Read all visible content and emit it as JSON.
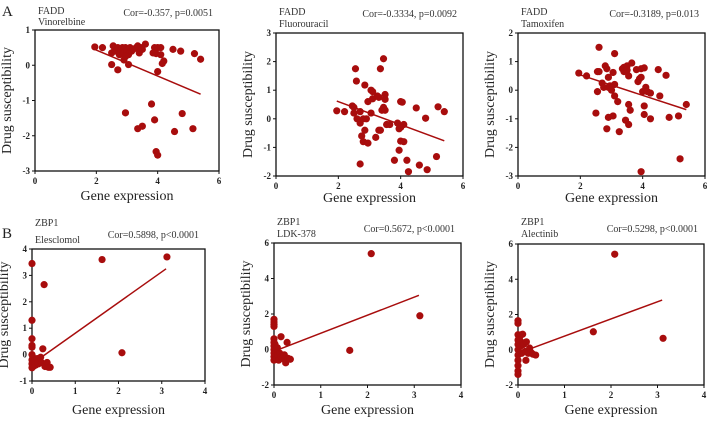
{
  "panel_labels": [
    "A",
    "B"
  ],
  "point_color": "#a80d0d",
  "chart_data": [
    {
      "type": "scatter",
      "gene": "FADD",
      "drug": "Vinorelbine",
      "stat": "Cor=-0.357, p=0.0051",
      "xlabel": "Gene expression",
      "ylabel": "Drug susceptibility",
      "xlim": [
        0,
        6
      ],
      "ylim": [
        -3,
        1
      ],
      "xstep": 2,
      "ystep": 1,
      "fit": [
        [
          1.95,
          0.45
        ],
        [
          5.4,
          -0.82
        ]
      ],
      "points": [
        [
          1.95,
          0.52
        ],
        [
          2.2,
          0.5
        ],
        [
          2.5,
          0.35
        ],
        [
          2.55,
          0.55
        ],
        [
          2.6,
          0.45
        ],
        [
          2.65,
          0.4
        ],
        [
          2.7,
          0.5
        ],
        [
          2.75,
          0.3
        ],
        [
          2.8,
          0.45
        ],
        [
          2.85,
          0.5
        ],
        [
          2.9,
          0.35
        ],
        [
          2.95,
          0.5
        ],
        [
          3.0,
          0.4
        ],
        [
          3.05,
          0.3
        ],
        [
          3.1,
          0.5
        ],
        [
          3.15,
          0.4
        ],
        [
          3.2,
          0.45
        ],
        [
          3.3,
          0.5
        ],
        [
          3.35,
          0.55
        ],
        [
          3.4,
          0.35
        ],
        [
          3.45,
          0.5
        ],
        [
          3.5,
          0.45
        ],
        [
          3.6,
          0.6
        ],
        [
          2.9,
          0.15
        ],
        [
          2.95,
          0.25
        ],
        [
          2.5,
          0.02
        ],
        [
          2.7,
          -0.13
        ],
        [
          3.05,
          0.02
        ],
        [
          3.9,
          0.5
        ],
        [
          4.0,
          0.5
        ],
        [
          4.1,
          0.5
        ],
        [
          3.85,
          0.35
        ],
        [
          3.95,
          0.33
        ],
        [
          4.1,
          0.3
        ],
        [
          4.2,
          0.12
        ],
        [
          4.15,
          0.05
        ],
        [
          4.5,
          0.45
        ],
        [
          4.75,
          0.4
        ],
        [
          5.2,
          0.33
        ],
        [
          5.4,
          0.17
        ],
        [
          4.0,
          -0.18
        ],
        [
          3.8,
          -1.1
        ],
        [
          2.95,
          -1.35
        ],
        [
          3.9,
          -1.55
        ],
        [
          3.35,
          -1.8
        ],
        [
          3.5,
          -1.73
        ],
        [
          4.8,
          -1.37
        ],
        [
          4.55,
          -1.88
        ],
        [
          5.15,
          -1.8
        ],
        [
          3.95,
          -2.45
        ],
        [
          4.0,
          -2.55
        ]
      ]
    },
    {
      "type": "scatter",
      "gene": "FADD",
      "drug": "Fluorouracil",
      "stat": "Cor=-0.3334, p=0.0092",
      "xlabel": "Gene expression",
      "ylabel": "Drug susceptibility",
      "xlim": [
        0,
        6
      ],
      "ylim": [
        -2,
        3
      ],
      "xstep": 2,
      "ystep": 1,
      "fit": [
        [
          1.95,
          0.62
        ],
        [
          5.4,
          -0.77
        ]
      ],
      "points": [
        [
          1.95,
          0.28
        ],
        [
          2.2,
          0.25
        ],
        [
          2.45,
          0.45
        ],
        [
          2.5,
          0.4
        ],
        [
          2.55,
          1.75
        ],
        [
          2.58,
          1.32
        ],
        [
          2.5,
          0.2
        ],
        [
          2.6,
          0.0
        ],
        [
          2.7,
          0.25
        ],
        [
          2.7,
          -0.15
        ],
        [
          2.75,
          -0.6
        ],
        [
          2.8,
          -0.8
        ],
        [
          2.8,
          0.0
        ],
        [
          2.85,
          1.18
        ],
        [
          2.85,
          -0.4
        ],
        [
          2.9,
          0.0
        ],
        [
          2.95,
          -0.85
        ],
        [
          2.95,
          0.6
        ],
        [
          3.05,
          1.0
        ],
        [
          3.05,
          0.2
        ],
        [
          3.1,
          0.7
        ],
        [
          3.1,
          0.95
        ],
        [
          3.2,
          -0.65
        ],
        [
          3.25,
          0.8
        ],
        [
          3.3,
          -0.4
        ],
        [
          3.3,
          0.75
        ],
        [
          3.35,
          1.75
        ],
        [
          3.35,
          -0.4
        ],
        [
          3.4,
          0.3
        ],
        [
          3.45,
          2.1
        ],
        [
          3.45,
          0.4
        ],
        [
          3.5,
          0.85
        ],
        [
          3.5,
          0.68
        ],
        [
          3.5,
          0.3
        ],
        [
          3.55,
          -0.2
        ],
        [
          3.65,
          -0.2
        ],
        [
          2.7,
          -1.58
        ],
        [
          3.8,
          -1.45
        ],
        [
          3.9,
          -0.15
        ],
        [
          3.95,
          -1.1
        ],
        [
          3.95,
          -0.35
        ],
        [
          4.0,
          -0.78
        ],
        [
          4.0,
          0.6
        ],
        [
          4.05,
          0.58
        ],
        [
          4.1,
          -0.8
        ],
        [
          4.1,
          -0.2
        ],
        [
          4.0,
          -0.3
        ],
        [
          4.2,
          -1.45
        ],
        [
          4.25,
          -1.85
        ],
        [
          4.5,
          0.38
        ],
        [
          4.6,
          -1.62
        ],
        [
          4.8,
          0.02
        ],
        [
          4.85,
          -1.78
        ],
        [
          5.15,
          -1.32
        ],
        [
          5.2,
          0.42
        ],
        [
          5.4,
          0.25
        ]
      ]
    },
    {
      "type": "scatter",
      "gene": "FADD",
      "drug": "Tamoxifen",
      "stat": "Cor=-0.3189, p=0.013",
      "xlabel": "Gene expression",
      "ylabel": "Drug susceptibility",
      "xlim": [
        0,
        6
      ],
      "ylim": [
        -3,
        2
      ],
      "xstep": 2,
      "ystep": 1,
      "fit": [
        [
          1.95,
          0.55
        ],
        [
          5.4,
          -0.68
        ]
      ],
      "points": [
        [
          1.95,
          0.6
        ],
        [
          2.2,
          0.5
        ],
        [
          2.5,
          -0.8
        ],
        [
          2.55,
          -0.05
        ],
        [
          2.55,
          0.65
        ],
        [
          2.6,
          1.5
        ],
        [
          2.6,
          0.65
        ],
        [
          2.7,
          0.25
        ],
        [
          2.75,
          0.1
        ],
        [
          2.8,
          0.85
        ],
        [
          2.85,
          0.75
        ],
        [
          2.9,
          0.45
        ],
        [
          2.9,
          0.1
        ],
        [
          2.85,
          -1.35
        ],
        [
          2.9,
          -0.95
        ],
        [
          2.95,
          0.15
        ],
        [
          3.0,
          0.0
        ],
        [
          3.05,
          0.62
        ],
        [
          3.05,
          -0.9
        ],
        [
          3.1,
          1.28
        ],
        [
          3.1,
          0.2
        ],
        [
          3.1,
          -0.2
        ],
        [
          3.2,
          -0.4
        ],
        [
          3.25,
          -1.45
        ],
        [
          3.35,
          0.75
        ],
        [
          3.4,
          0.65
        ],
        [
          3.4,
          0.8
        ],
        [
          3.45,
          -1.05
        ],
        [
          3.5,
          0.85
        ],
        [
          3.5,
          0.7
        ],
        [
          3.55,
          0.5
        ],
        [
          3.55,
          -0.5
        ],
        [
          3.55,
          -1.2
        ],
        [
          3.6,
          -0.7
        ],
        [
          3.65,
          0.95
        ],
        [
          3.8,
          0.72
        ],
        [
          3.85,
          0.3
        ],
        [
          3.9,
          0.4
        ],
        [
          3.95,
          0.45
        ],
        [
          3.95,
          0.75
        ],
        [
          3.95,
          -2.85
        ],
        [
          4.0,
          -0.05
        ],
        [
          4.05,
          0.78
        ],
        [
          4.05,
          -0.55
        ],
        [
          4.05,
          -0.85
        ],
        [
          4.1,
          0.1
        ],
        [
          4.15,
          -0.05
        ],
        [
          4.25,
          -0.1
        ],
        [
          4.25,
          -1.0
        ],
        [
          4.5,
          0.72
        ],
        [
          4.55,
          -0.2
        ],
        [
          4.75,
          0.52
        ],
        [
          4.85,
          -0.95
        ],
        [
          5.15,
          -0.9
        ],
        [
          5.2,
          -2.4
        ],
        [
          5.4,
          -0.5
        ]
      ]
    },
    {
      "type": "scatter",
      "gene": "ZBP1",
      "drug": "Elesclomol",
      "stat": "Cor=0.5898, p<0.0001",
      "xlabel": "Gene expression",
      "ylabel": "Drug susceptibility",
      "xlim": [
        0,
        4
      ],
      "ylim": [
        -1,
        4
      ],
      "xstep": 1,
      "ystep": 1,
      "fit": [
        [
          0,
          -0.35
        ],
        [
          3.1,
          3.25
        ]
      ],
      "points": [
        [
          0,
          3.45
        ],
        [
          0,
          1.3
        ],
        [
          0,
          0.6
        ],
        [
          0,
          0.35
        ],
        [
          0,
          0.28
        ],
        [
          0,
          0.0
        ],
        [
          0,
          -0.2
        ],
        [
          0,
          -0.35
        ],
        [
          0,
          -0.5
        ],
        [
          0.02,
          -0.1
        ],
        [
          0.03,
          -0.45
        ],
        [
          0.05,
          -0.3
        ],
        [
          0.06,
          -0.2
        ],
        [
          0.08,
          -0.4
        ],
        [
          0.1,
          -0.25
        ],
        [
          0.12,
          -0.15
        ],
        [
          0.15,
          -0.35
        ],
        [
          0.18,
          -0.2
        ],
        [
          0.2,
          -0.1
        ],
        [
          0.22,
          -0.3
        ],
        [
          0.25,
          0.22
        ],
        [
          0.28,
          2.65
        ],
        [
          0.3,
          -0.45
        ],
        [
          0.35,
          -0.3
        ],
        [
          0.38,
          -0.48
        ],
        [
          0.42,
          -0.48
        ],
        [
          1.62,
          3.6
        ],
        [
          2.08,
          0.07
        ],
        [
          3.12,
          3.7
        ]
      ]
    },
    {
      "type": "scatter",
      "gene": "ZBP1",
      "drug": "LDK-378",
      "stat": "Cor=0.5672, p<0.0001",
      "xlabel": "Gene expression",
      "ylabel": "Drug susceptibility",
      "xlim": [
        0,
        4
      ],
      "ylim": [
        -2,
        6
      ],
      "xstep": 1,
      "ystep": 2,
      "fit": [
        [
          0,
          -0.1
        ],
        [
          3.1,
          3.05
        ]
      ],
      "points": [
        [
          0,
          1.7
        ],
        [
          0,
          1.55
        ],
        [
          0,
          1.4
        ],
        [
          0,
          1.3
        ],
        [
          0,
          0.6
        ],
        [
          0,
          0.4
        ],
        [
          0,
          0.2
        ],
        [
          0,
          0.0
        ],
        [
          0,
          -0.2
        ],
        [
          0,
          -0.4
        ],
        [
          0,
          -0.6
        ],
        [
          0.02,
          0.3
        ],
        [
          0.04,
          -0.1
        ],
        [
          0.05,
          -0.5
        ],
        [
          0.07,
          0.1
        ],
        [
          0.08,
          -0.3
        ],
        [
          0.1,
          -0.6
        ],
        [
          0.12,
          -0.2
        ],
        [
          0.15,
          0.72
        ],
        [
          0.15,
          -0.4
        ],
        [
          0.18,
          -0.5
        ],
        [
          0.22,
          -0.3
        ],
        [
          0.25,
          -0.75
        ],
        [
          0.28,
          0.4
        ],
        [
          0.3,
          -0.5
        ],
        [
          0.35,
          -0.55
        ],
        [
          1.62,
          -0.05
        ],
        [
          2.08,
          5.4
        ],
        [
          3.12,
          1.9
        ]
      ]
    },
    {
      "type": "scatter",
      "gene": "ZBP1",
      "drug": "Alectinib",
      "stat": "Cor=0.5298, p<0.0001",
      "xlabel": "Gene expression",
      "ylabel": "Drug susceptibility",
      "xlim": [
        0,
        4
      ],
      "ylim": [
        -2,
        6
      ],
      "xstep": 1,
      "ystep": 2,
      "fit": [
        [
          0,
          -0.2
        ],
        [
          3.1,
          2.82
        ]
      ],
      "points": [
        [
          0,
          1.65
        ],
        [
          0,
          1.5
        ],
        [
          0,
          0.85
        ],
        [
          0,
          0.55
        ],
        [
          0,
          0.3
        ],
        [
          0,
          0.0
        ],
        [
          0,
          -0.3
        ],
        [
          0,
          -0.6
        ],
        [
          0,
          -0.9
        ],
        [
          0,
          -1.2
        ],
        [
          0,
          -1.4
        ],
        [
          0.03,
          0.6
        ],
        [
          0.05,
          0.2
        ],
        [
          0.07,
          0.85
        ],
        [
          0.08,
          -0.2
        ],
        [
          0.1,
          0.88
        ],
        [
          0.1,
          0.4
        ],
        [
          0.12,
          0.3
        ],
        [
          0.15,
          -0.1
        ],
        [
          0.17,
          -0.6
        ],
        [
          0.18,
          0.45
        ],
        [
          0.22,
          -0.2
        ],
        [
          0.25,
          0.1
        ],
        [
          0.28,
          -0.15
        ],
        [
          0.32,
          -0.25
        ],
        [
          0.38,
          -0.3
        ],
        [
          1.62,
          1.02
        ],
        [
          2.08,
          5.42
        ],
        [
          3.12,
          0.65
        ]
      ]
    }
  ]
}
